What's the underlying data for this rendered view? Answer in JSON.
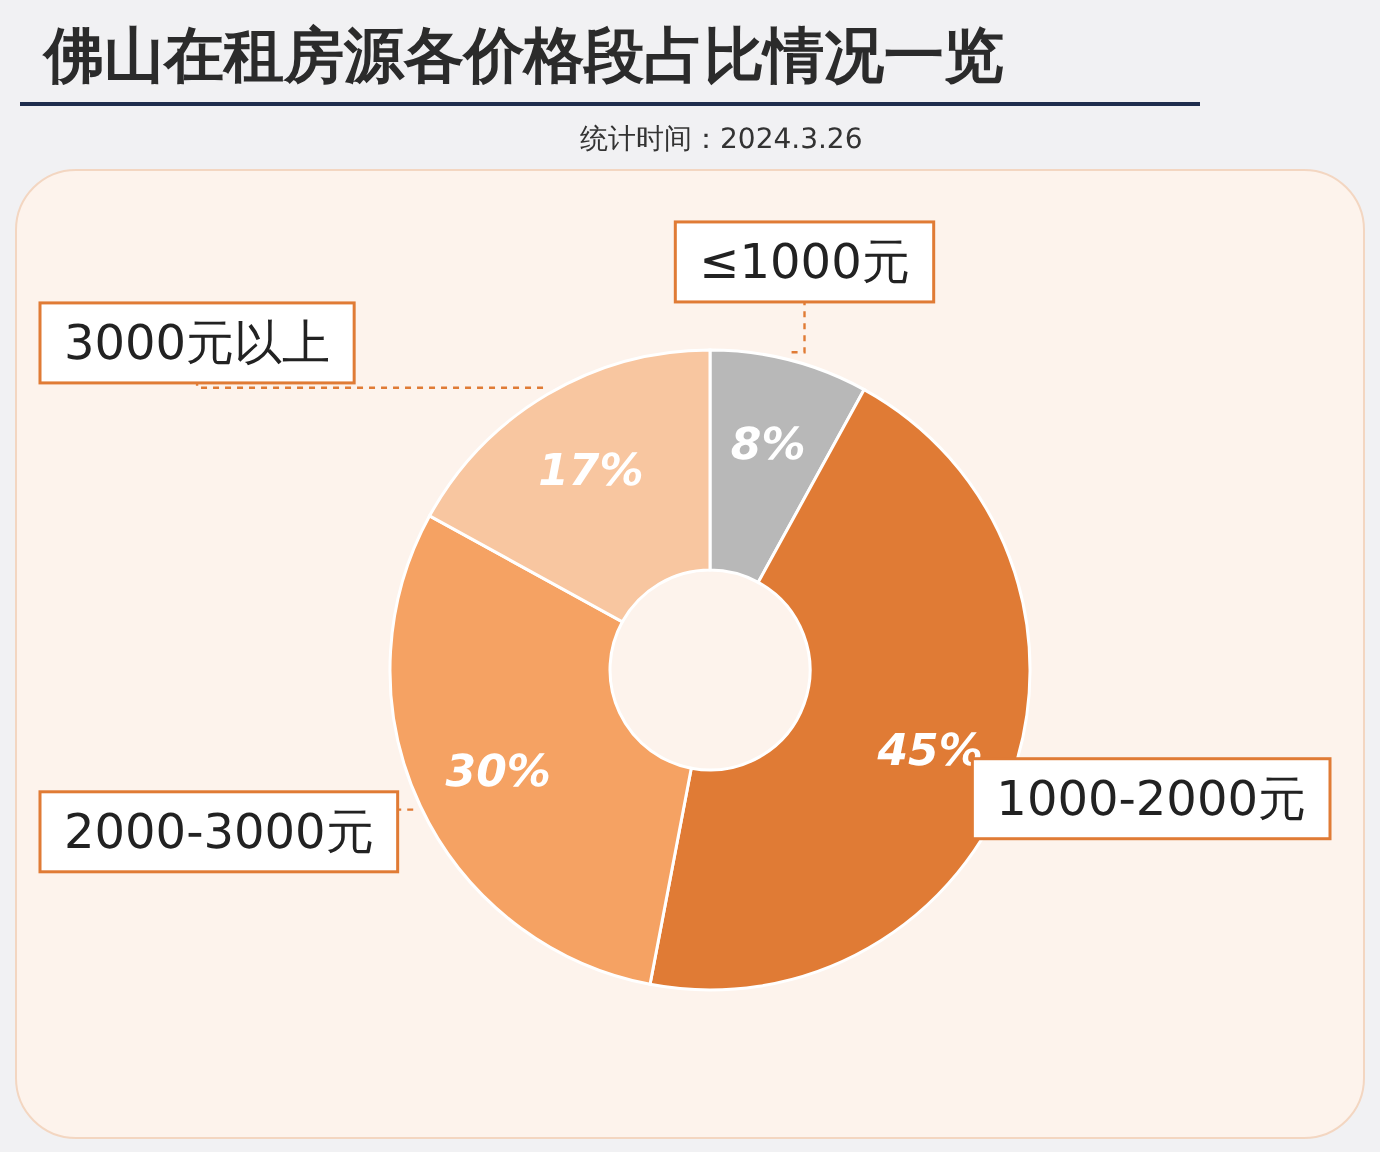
{
  "chart_data": {
    "type": "donut",
    "title": "佛山在租房源各价格段占比情况一览",
    "annotations": [
      "统计时间：2024.3.26"
    ],
    "categories": [
      "≤1000元",
      "1000-2000元",
      "2000-3000元",
      "3000元以上"
    ],
    "values": [
      8,
      45,
      30,
      17
    ],
    "colors": [
      "#b8b8b8",
      "#e07b35",
      "#f5a263",
      "#f8c6a0"
    ],
    "value_labels": [
      "8%",
      "45%",
      "30%",
      "17%"
    ]
  }
}
